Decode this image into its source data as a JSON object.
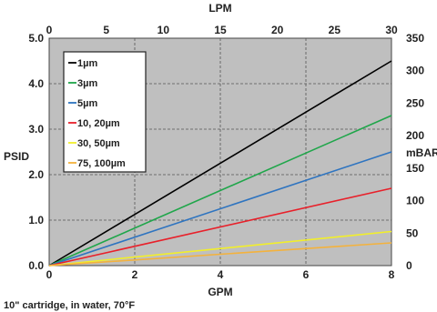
{
  "chart_data": {
    "type": "line",
    "title": "",
    "x_bottom": {
      "label": "GPM",
      "ticks": [
        0,
        2,
        4,
        6,
        8
      ],
      "range": [
        0,
        8
      ]
    },
    "x_top": {
      "label": "LPM",
      "ticks": [
        0,
        5,
        10,
        15,
        20,
        25,
        30
      ],
      "range": [
        0,
        30
      ]
    },
    "y_left": {
      "label": "PSID",
      "ticks": [
        0,
        1,
        2,
        3,
        4,
        5
      ],
      "tick_labels": [
        "0.0",
        "1.0",
        "2.0",
        "3.0",
        "4.0",
        "5.0"
      ],
      "range": [
        0,
        5
      ]
    },
    "y_right": {
      "label": "mBAR",
      "ticks": [
        0,
        50,
        100,
        150,
        200,
        250,
        300,
        350
      ],
      "range": [
        0,
        350
      ]
    },
    "grid": true,
    "plot_background": "#bfbfbf",
    "legend_position": "top-left",
    "series": [
      {
        "name": "1µm",
        "color": "#000000",
        "x": [
          0,
          8
        ],
        "y": [
          0,
          4.5
        ]
      },
      {
        "name": "3µm",
        "color": "#1fa64a",
        "x": [
          0,
          8
        ],
        "y": [
          0,
          3.3
        ]
      },
      {
        "name": "5µm",
        "color": "#2e74c0",
        "x": [
          0,
          8
        ],
        "y": [
          0,
          2.5
        ]
      },
      {
        "name": "10, 20µm",
        "color": "#e8202a",
        "x": [
          0,
          8
        ],
        "y": [
          0,
          1.7
        ]
      },
      {
        "name": "30, 50µm",
        "color": "#f2ef2a",
        "x": [
          0,
          8
        ],
        "y": [
          0,
          0.75
        ]
      },
      {
        "name": "75, 100µm",
        "color": "#f4b23c",
        "x": [
          0,
          8
        ],
        "y": [
          0,
          0.5
        ]
      }
    ],
    "annotation": "10\" cartridge, in water, 70°F"
  }
}
